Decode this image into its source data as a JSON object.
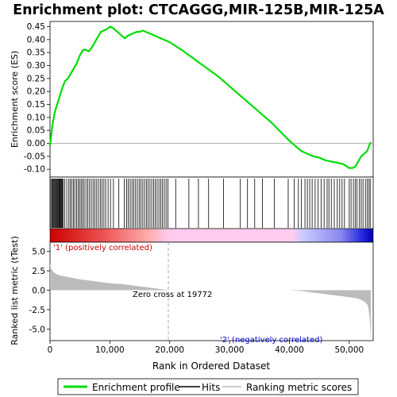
{
  "title": "Enrichment plot: CTCAGGG,MIR-125B,MIR-125A",
  "colors": {
    "enrichment_line": "#00dd00",
    "hits": "#000000",
    "metric_fill": "#bbbbbb",
    "pos_label": "#cc0000",
    "neg_label": "#0000cc",
    "zero_cross_line": "#aaaaaa"
  },
  "chart_data": [
    {
      "type": "line",
      "name": "enrichment-profile",
      "ylabel": "Enrichment score (ES)",
      "xlim": [
        0,
        54000
      ],
      "ylim": [
        -0.13,
        0.47
      ],
      "yticks": [
        "0.45",
        "0.40",
        "0.35",
        "0.30",
        "0.25",
        "0.20",
        "0.15",
        "0.10",
        "0.05",
        "0.00",
        "-0.05",
        "-0.10"
      ],
      "ytick_values": [
        0.45,
        0.4,
        0.35,
        0.3,
        0.25,
        0.2,
        0.15,
        0.1,
        0.05,
        0.0,
        -0.05,
        -0.1
      ],
      "x": [
        0,
        400,
        800,
        1200,
        1600,
        2000,
        2500,
        3000,
        3500,
        4000,
        4500,
        5000,
        5500,
        6000,
        6500,
        7000,
        7500,
        8000,
        8500,
        9000,
        9500,
        10000,
        10500,
        11000,
        11500,
        12000,
        12500,
        13000,
        13500,
        14000,
        14500,
        15000,
        15500,
        16000,
        16500,
        17000,
        17500,
        18000,
        18500,
        19000,
        19500,
        20000,
        22000,
        25000,
        28000,
        31000,
        34000,
        37000,
        40000,
        42000,
        43000,
        44000,
        45000,
        46000,
        47000,
        48000,
        49000,
        50000,
        50500,
        51000,
        51500,
        52000,
        52500,
        53000,
        53300,
        53600
      ],
      "y": [
        -0.01,
        0.07,
        0.12,
        0.15,
        0.18,
        0.21,
        0.24,
        0.25,
        0.27,
        0.29,
        0.31,
        0.34,
        0.36,
        0.36,
        0.355,
        0.37,
        0.39,
        0.41,
        0.43,
        0.435,
        0.44,
        0.45,
        0.445,
        0.435,
        0.425,
        0.415,
        0.405,
        0.415,
        0.42,
        0.425,
        0.43,
        0.43,
        0.435,
        0.43,
        0.425,
        0.42,
        0.415,
        0.41,
        0.405,
        0.4,
        0.395,
        0.39,
        0.36,
        0.31,
        0.26,
        0.2,
        0.14,
        0.08,
        0.01,
        -0.03,
        -0.04,
        -0.05,
        -0.055,
        -0.065,
        -0.07,
        -0.075,
        -0.08,
        -0.095,
        -0.095,
        -0.09,
        -0.07,
        -0.05,
        -0.04,
        -0.03,
        -0.01,
        0.005
      ]
    },
    {
      "type": "hits",
      "name": "hits",
      "x": [
        150,
        320,
        480,
        610,
        750,
        880,
        1000,
        1120,
        1250,
        1370,
        1490,
        1600,
        1720,
        1840,
        1960,
        2080,
        2200,
        2450,
        2800,
        3150,
        3400,
        3650,
        3900,
        4150,
        4450,
        4700,
        4950,
        5200,
        5450,
        5700,
        6000,
        6300,
        6600,
        6900,
        7200,
        7500,
        7800,
        8100,
        8400,
        8700,
        9000,
        9300,
        9700,
        10100,
        10600,
        11500,
        12400,
        12800,
        13100,
        13400,
        13700,
        14000,
        14300,
        14600,
        14900,
        15200,
        15500,
        15800,
        16100,
        16400,
        16700,
        17000,
        17300,
        17600,
        17900,
        18200,
        18500,
        18800,
        19100,
        19400,
        19700,
        21000,
        23200,
        24800,
        26500,
        29000,
        31800,
        33000,
        34200,
        35500,
        37500,
        39800,
        40800,
        41500,
        42000,
        42600,
        43000,
        43400,
        43800,
        44300,
        44800,
        45300,
        45800,
        46300,
        46600,
        47000,
        47500,
        48000,
        48400,
        48800,
        49200,
        50000,
        50300,
        50700,
        51000,
        51300,
        51700,
        52000,
        52300,
        52700,
        53000,
        53300,
        53500
      ]
    },
    {
      "type": "area",
      "name": "ranked-list-metric",
      "ylabel": "Ranked list metric (tTest)",
      "xlabel": "Rank in Ordered Dataset",
      "xlim": [
        0,
        54000
      ],
      "ylim": [
        -6.5,
        6.2
      ],
      "xticks": [
        "0",
        "10,000",
        "20,000",
        "30,000",
        "40,000",
        "50,000"
      ],
      "xtick_values": [
        0,
        10000,
        20000,
        30000,
        40000,
        50000
      ],
      "yticks": [
        "5.0",
        "2.5",
        "0.0",
        "-2.5",
        "-5.0"
      ],
      "ytick_values": [
        5.0,
        2.5,
        0.0,
        -2.5,
        -5.0
      ],
      "x": [
        0,
        200,
        500,
        1000,
        1500,
        2000,
        3000,
        4000,
        5000,
        6000,
        7000,
        8000,
        9000,
        10000,
        11000,
        12000,
        13000,
        14000,
        15000,
        16000,
        17000,
        18000,
        19000,
        19772,
        20000,
        25000,
        30000,
        35000,
        40000,
        41000,
        42000,
        43000,
        44000,
        45000,
        46000,
        47000,
        48000,
        49000,
        50000,
        51000,
        51500,
        52000,
        52500,
        53000,
        53200,
        53400,
        53600
      ],
      "y": [
        3.4,
        2.8,
        2.4,
        2.1,
        1.95,
        1.85,
        1.7,
        1.55,
        1.4,
        1.3,
        1.2,
        1.1,
        1.0,
        0.9,
        0.85,
        0.8,
        0.7,
        0.6,
        0.5,
        0.4,
        0.3,
        0.2,
        0.1,
        0.0,
        0.0,
        0.0,
        0.0,
        0.0,
        0.0,
        -0.05,
        -0.1,
        -0.2,
        -0.3,
        -0.4,
        -0.5,
        -0.6,
        -0.7,
        -0.8,
        -0.9,
        -1.0,
        -1.1,
        -1.25,
        -1.45,
        -1.8,
        -2.3,
        -3.5,
        -6.3
      ],
      "annotations": {
        "pos_label": "'1' (positively correlated)",
        "neg_label": "'2' (negatively correlated)",
        "zero_cross": "Zero cross at 19772"
      }
    }
  ],
  "legend": {
    "items": [
      {
        "label": "Enrichment profile"
      },
      {
        "label": "Hits"
      },
      {
        "label": "Ranking metric scores"
      }
    ]
  }
}
